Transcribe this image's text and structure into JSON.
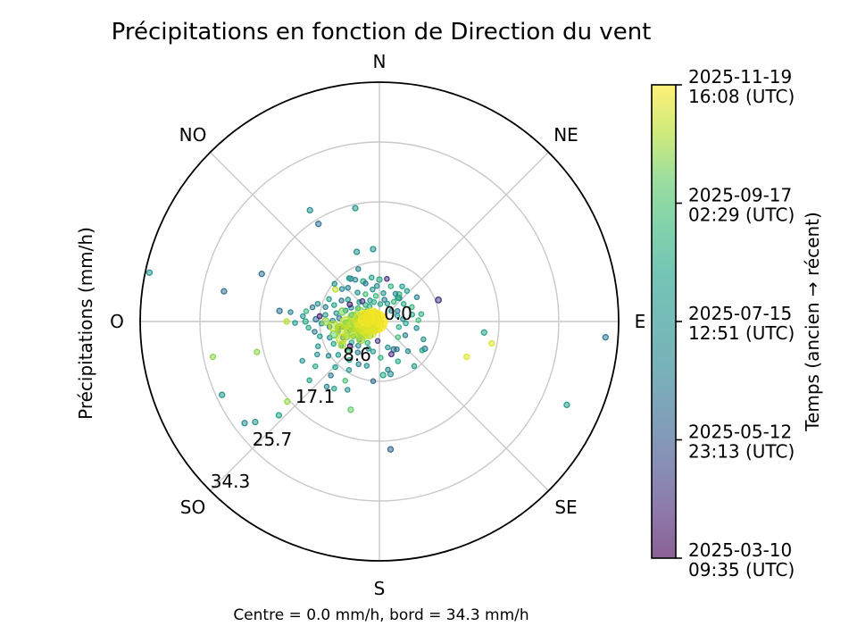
{
  "chart_data": {
    "type": "scatter",
    "projection": "polar",
    "title": "Précipitations en fonction de Direction du vent",
    "radial_axis_label": "Précipitations (mm/h)",
    "caption": "Centre = 0.0 mm/h, bord = 34.3 mm/h",
    "theta_labels": [
      "N",
      "NE",
      "E",
      "SE",
      "S",
      "SO",
      "O",
      "NO"
    ],
    "r_tick_labels": [
      "0.0",
      "8.6",
      "17.1",
      "25.7",
      "34.3"
    ],
    "r_ticks_mm": [
      0.0,
      8.6,
      17.1,
      25.7,
      34.3
    ],
    "r_max": 34.3,
    "grid": true,
    "grid_color": "#c9c9c9",
    "outline_color": "#000000",
    "colorbar": {
      "label": "Temps (ancien → récent)",
      "ticks": [
        {
          "date": "2025-11-19",
          "time": "16:08 (UTC)",
          "frac": 1.0
        },
        {
          "date": "2025-09-17",
          "time": "02:29 (UTC)",
          "frac": 0.75
        },
        {
          "date": "2025-07-15",
          "time": "12:51 (UTC)",
          "frac": 0.5
        },
        {
          "date": "2025-05-12",
          "time": "23:13 (UTC)",
          "frac": 0.25
        },
        {
          "date": "2025-03-10",
          "time": "09:35 (UTC)",
          "frac": 0.0
        }
      ],
      "colormap": "viridis",
      "colormap_stops": [
        [
          0.0,
          "#440154"
        ],
        [
          0.1,
          "#482878"
        ],
        [
          0.2,
          "#3e4a89"
        ],
        [
          0.3,
          "#31688e"
        ],
        [
          0.4,
          "#26828e"
        ],
        [
          0.5,
          "#21918c"
        ],
        [
          0.6,
          "#1fa187"
        ],
        [
          0.7,
          "#35b779"
        ],
        [
          0.8,
          "#5ec962"
        ],
        [
          0.9,
          "#b5de2b"
        ],
        [
          1.0,
          "#fde725"
        ]
      ],
      "alpha": 0.62
    },
    "points_format": [
      "direction_deg_from_N_clockwise",
      "precip_mm_per_h",
      "time_frac_0_old_1_recent",
      "marker_radius_px"
    ],
    "points": [
      [
        282,
        33.7,
        0.5,
        3
      ],
      [
        281,
        22.7,
        0.33,
        3
      ],
      [
        292,
        18.2,
        0.33,
        3
      ],
      [
        328,
        18.8,
        0.48,
        3
      ],
      [
        328,
        16.5,
        0.33,
        3
      ],
      [
        348,
        16.6,
        0.5,
        3
      ],
      [
        342,
        10.5,
        0.48,
        3
      ],
      [
        276,
        14.4,
        0.33,
        3
      ],
      [
        270,
        13.3,
        0.9,
        3
      ],
      [
        258,
        24.4,
        0.85,
        3
      ],
      [
        256,
        18.1,
        0.85,
        3
      ],
      [
        245,
        24.9,
        0.5,
        3
      ],
      [
        227,
        19.7,
        0.6,
        3
      ],
      [
        233,
        24.2,
        0.48,
        3
      ],
      [
        231,
        22.9,
        0.5,
        3
      ],
      [
        229,
        17.5,
        0.86,
        3
      ],
      [
        198,
        13.3,
        0.8,
        3
      ],
      [
        175,
        18.4,
        0.28,
        3
      ],
      [
        112,
        13.5,
        0.95,
        3
      ],
      [
        96,
        15.1,
        0.6,
        3
      ],
      [
        101,
        16.4,
        0.95,
        3
      ],
      [
        94,
        32.5,
        0.36,
        3
      ],
      [
        114,
        29.4,
        0.55,
        3
      ],
      [
        70,
        9.0,
        0.12,
        3.2
      ],
      [
        355,
        10.4,
        0.5,
        3
      ],
      [
        0,
        6.0,
        0.62,
        3
      ],
      [
        338,
        6.2,
        0.62,
        3
      ],
      [
        326,
        7.4,
        0.34,
        3
      ],
      [
        306,
        7.8,
        0.92,
        3
      ],
      [
        272,
        9.1,
        0.34,
        3
      ],
      [
        270,
        10.6,
        0.62,
        3
      ],
      [
        40,
        4.4,
        0.36,
        3
      ],
      [
        38,
        4.3,
        0.64,
        3
      ],
      [
        36,
        4.8,
        0.66,
        3
      ],
      [
        168,
        7.7,
        0.45,
        3
      ],
      [
        176,
        7.7,
        0.62,
        3
      ],
      [
        121,
        7.6,
        0.35,
        3
      ],
      [
        153,
        4.5,
        0.35,
        3
      ],
      [
        251,
        3.1,
        0.62,
        2.6
      ],
      [
        254,
        4.4,
        0.48,
        2.6
      ],
      [
        257,
        6.1,
        0.35,
        2.6
      ],
      [
        259,
        2.2,
        0.72,
        3.0
      ],
      [
        262,
        5.3,
        0.58,
        2.6
      ],
      [
        264,
        7.2,
        0.4,
        2.6
      ],
      [
        266,
        3.8,
        0.66,
        2.6
      ],
      [
        268,
        8.3,
        0.52,
        2.6
      ],
      [
        269,
        4.9,
        0.8,
        2.6
      ],
      [
        271,
        6.7,
        0.44,
        2.6
      ],
      [
        273,
        2.9,
        0.7,
        3.2
      ],
      [
        275,
        5.8,
        0.36,
        2.6
      ],
      [
        277,
        7.8,
        0.55,
        2.6
      ],
      [
        279,
        3.4,
        0.62,
        2.6
      ],
      [
        281,
        6.3,
        0.48,
        2.6
      ],
      [
        283,
        4.1,
        0.75,
        2.6
      ],
      [
        285,
        8.0,
        0.38,
        2.6
      ],
      [
        287,
        2.5,
        0.66,
        3.0
      ],
      [
        288,
        5.1,
        0.52,
        2.6
      ],
      [
        290,
        6.9,
        0.6,
        2.6
      ],
      [
        252,
        7.5,
        0.44,
        2.6
      ],
      [
        256,
        8.8,
        0.57,
        2.6
      ],
      [
        261,
        9.4,
        0.36,
        2.6
      ],
      [
        265,
        10.2,
        0.62,
        2.6
      ],
      [
        274,
        11.0,
        0.5,
        2.6
      ],
      [
        282,
        9.8,
        0.33,
        2.6
      ],
      [
        278,
        10.6,
        0.68,
        2.6
      ],
      [
        286,
        9.2,
        0.46,
        2.6
      ],
      [
        269,
        12.1,
        0.55,
        2.6
      ],
      [
        276,
        12.8,
        0.4,
        2.6
      ],
      [
        202,
        4.2,
        0.55,
        2.6
      ],
      [
        206,
        6.8,
        0.4,
        2.6
      ],
      [
        209,
        3.5,
        0.68,
        2.6
      ],
      [
        212,
        8.2,
        0.52,
        2.6
      ],
      [
        215,
        5.4,
        0.36,
        2.6
      ],
      [
        218,
        7.0,
        0.62,
        2.6
      ],
      [
        221,
        4.6,
        0.48,
        2.6
      ],
      [
        224,
        9.1,
        0.58,
        2.6
      ],
      [
        226,
        6.2,
        0.72,
        2.6
      ],
      [
        228,
        3.9,
        0.44,
        2.6
      ],
      [
        231,
        7.6,
        0.55,
        2.6
      ],
      [
        233,
        5.0,
        0.65,
        2.6
      ],
      [
        236,
        8.8,
        0.38,
        2.6
      ],
      [
        238,
        6.5,
        0.58,
        2.6
      ],
      [
        240,
        4.3,
        0.78,
        2.6
      ],
      [
        242,
        10.1,
        0.46,
        2.6
      ],
      [
        244,
        7.3,
        0.6,
        2.6
      ],
      [
        246,
        5.7,
        0.34,
        2.6
      ],
      [
        248,
        9.5,
        0.52,
        2.6
      ],
      [
        249,
        3.2,
        0.7,
        2.6
      ],
      [
        205,
        10.8,
        0.48,
        2.6
      ],
      [
        214,
        11.6,
        0.57,
        2.6
      ],
      [
        222,
        10.4,
        0.36,
        2.6
      ],
      [
        235,
        11.2,
        0.63,
        2.6
      ],
      [
        243,
        12.4,
        0.5,
        2.6
      ],
      [
        210,
        9.8,
        0.74,
        2.6
      ],
      [
        219,
        12.0,
        0.42,
        2.6
      ],
      [
        230,
        13.1,
        0.56,
        2.6
      ],
      [
        292,
        2.8,
        0.6,
        2.6
      ],
      [
        296,
        4.5,
        0.46,
        2.6
      ],
      [
        299,
        6.2,
        0.34,
        2.6
      ],
      [
        302,
        3.6,
        0.66,
        2.6
      ],
      [
        305,
        5.5,
        0.52,
        2.6
      ],
      [
        308,
        2.4,
        0.74,
        2.6
      ],
      [
        311,
        7.1,
        0.44,
        2.6
      ],
      [
        314,
        4.0,
        0.58,
        2.6
      ],
      [
        317,
        6.6,
        0.38,
        2.6
      ],
      [
        320,
        3.1,
        0.68,
        2.6
      ],
      [
        323,
        5.2,
        0.5,
        2.6
      ],
      [
        327,
        2.6,
        0.62,
        2.6
      ],
      [
        330,
        6.9,
        0.42,
        2.6
      ],
      [
        333,
        4.4,
        0.72,
        2.6
      ],
      [
        336,
        3.3,
        0.55,
        2.6
      ],
      [
        340,
        5.8,
        0.36,
        2.6
      ],
      [
        344,
        2.9,
        0.64,
        2.6
      ],
      [
        348,
        4.7,
        0.52,
        2.6
      ],
      [
        352,
        3.7,
        0.7,
        2.6
      ],
      [
        356,
        5.1,
        0.45,
        2.6
      ],
      [
        294,
        7.9,
        0.56,
        2.6
      ],
      [
        310,
        8.4,
        0.48,
        2.6
      ],
      [
        325,
        7.6,
        0.6,
        2.6
      ],
      [
        338,
        8.1,
        0.4,
        2.6
      ],
      [
        350,
        6.4,
        0.58,
        2.6
      ],
      [
        3,
        2.5,
        0.62,
        2.6
      ],
      [
        8,
        4.1,
        0.5,
        2.6
      ],
      [
        13,
        3.2,
        0.36,
        2.6
      ],
      [
        18,
        5.3,
        0.66,
        2.6
      ],
      [
        24,
        2.8,
        0.55,
        2.6
      ],
      [
        30,
        4.6,
        0.44,
        2.6
      ],
      [
        36,
        3.5,
        0.7,
        2.6
      ],
      [
        42,
        5.9,
        0.58,
        2.6
      ],
      [
        48,
        2.3,
        0.48,
        2.6
      ],
      [
        54,
        4.3,
        0.62,
        2.6
      ],
      [
        60,
        3.0,
        0.35,
        2.6
      ],
      [
        66,
        5.1,
        0.68,
        2.6
      ],
      [
        72,
        2.7,
        0.52,
        2.6
      ],
      [
        78,
        4.8,
        0.6,
        2.6
      ],
      [
        84,
        3.4,
        0.45,
        2.6
      ],
      [
        88,
        5.6,
        0.72,
        2.6
      ],
      [
        10,
        6.2,
        0.1,
        2.6
      ],
      [
        33,
        6.0,
        0.56,
        2.6
      ],
      [
        57,
        6.4,
        0.4,
        2.6
      ],
      [
        80,
        6.1,
        0.64,
        2.6
      ],
      [
        94,
        3.8,
        0.58,
        2.6
      ],
      [
        100,
        5.4,
        0.46,
        2.6
      ],
      [
        106,
        2.9,
        0.66,
        2.6
      ],
      [
        112,
        6.8,
        0.52,
        2.6
      ],
      [
        118,
        4.2,
        0.38,
        2.6
      ],
      [
        124,
        7.4,
        0.6,
        2.6
      ],
      [
        130,
        3.5,
        0.72,
        2.6
      ],
      [
        136,
        5.9,
        0.44,
        2.6
      ],
      [
        142,
        8.1,
        0.55,
        2.6
      ],
      [
        148,
        4.7,
        0.34,
        2.6
      ],
      [
        155,
        6.3,
        0.62,
        2.6
      ],
      [
        162,
        3.9,
        0.5,
        2.6
      ],
      [
        170,
        7.0,
        0.4,
        2.6
      ],
      [
        178,
        5.2,
        0.68,
        2.6
      ],
      [
        186,
        8.6,
        0.3,
        2.6
      ],
      [
        192,
        4.4,
        0.56,
        2.6
      ],
      [
        196,
        6.6,
        0.48,
        2.6
      ],
      [
        185,
        2.8,
        0.15,
        2.6
      ],
      [
        300,
        4.9,
        0.08,
        2.8
      ],
      [
        260,
        6.0,
        0.12,
        2.8
      ],
      [
        230,
        5.5,
        0.06,
        2.8
      ],
      [
        320,
        3.8,
        0.14,
        2.8
      ],
      [
        160,
        5.0,
        0.1,
        2.8
      ],
      [
        275,
        8.6,
        0.09,
        2.8
      ],
      [
        250,
        2.0,
        0.82,
        5
      ],
      [
        258,
        3.4,
        0.86,
        4.5
      ],
      [
        265,
        4.6,
        0.8,
        5
      ],
      [
        272,
        2.6,
        0.88,
        4.5
      ],
      [
        280,
        3.9,
        0.84,
        5
      ],
      [
        288,
        1.8,
        0.8,
        4.5
      ],
      [
        244,
        4.1,
        0.86,
        5
      ],
      [
        236,
        2.9,
        0.82,
        4.5
      ],
      [
        296,
        3.1,
        0.85,
        5
      ],
      [
        305,
        1.9,
        0.83,
        4.5
      ],
      [
        226,
        3.7,
        0.87,
        4.5
      ],
      [
        218,
        2.4,
        0.81,
        4.5
      ],
      [
        262,
        5.9,
        0.84,
        4
      ],
      [
        254,
        6.8,
        0.8,
        4
      ],
      [
        270,
        7.7,
        0.86,
        4
      ],
      [
        246,
        5.2,
        0.83,
        4
      ],
      [
        238,
        6.3,
        0.88,
        4
      ],
      [
        285,
        5.5,
        0.82,
        4
      ],
      [
        248,
        1.6,
        0.9,
        7
      ],
      [
        255,
        2.8,
        0.92,
        7.5
      ],
      [
        262,
        3.8,
        0.9,
        7
      ],
      [
        268,
        4.8,
        0.91,
        6.5
      ],
      [
        240,
        2.2,
        0.93,
        7
      ],
      [
        233,
        3.0,
        0.9,
        6.5
      ],
      [
        258,
        5.6,
        0.92,
        6
      ],
      [
        251,
        4.4,
        0.91,
        6.5
      ],
      [
        264,
        6.6,
        0.9,
        5.5
      ],
      [
        245,
        6.0,
        0.92,
        5.5
      ],
      [
        260,
        0.4,
        0.99,
        12
      ],
      [
        270,
        0.9,
        0.98,
        11
      ],
      [
        280,
        0.6,
        1.0,
        12
      ],
      [
        250,
        1.2,
        0.97,
        10
      ],
      [
        290,
        1.1,
        0.98,
        10
      ],
      [
        240,
        1.5,
        0.96,
        9
      ],
      [
        300,
        0.8,
        0.99,
        9
      ],
      [
        265,
        1.8,
        0.97,
        10
      ],
      [
        255,
        2.3,
        0.95,
        9
      ],
      [
        275,
        2.6,
        0.96,
        9
      ],
      [
        235,
        0.7,
        0.98,
        9
      ],
      [
        310,
        1.4,
        0.97,
        8
      ],
      [
        225,
        2.0,
        0.95,
        8
      ],
      [
        285,
        1.9,
        0.99,
        9
      ]
    ]
  }
}
